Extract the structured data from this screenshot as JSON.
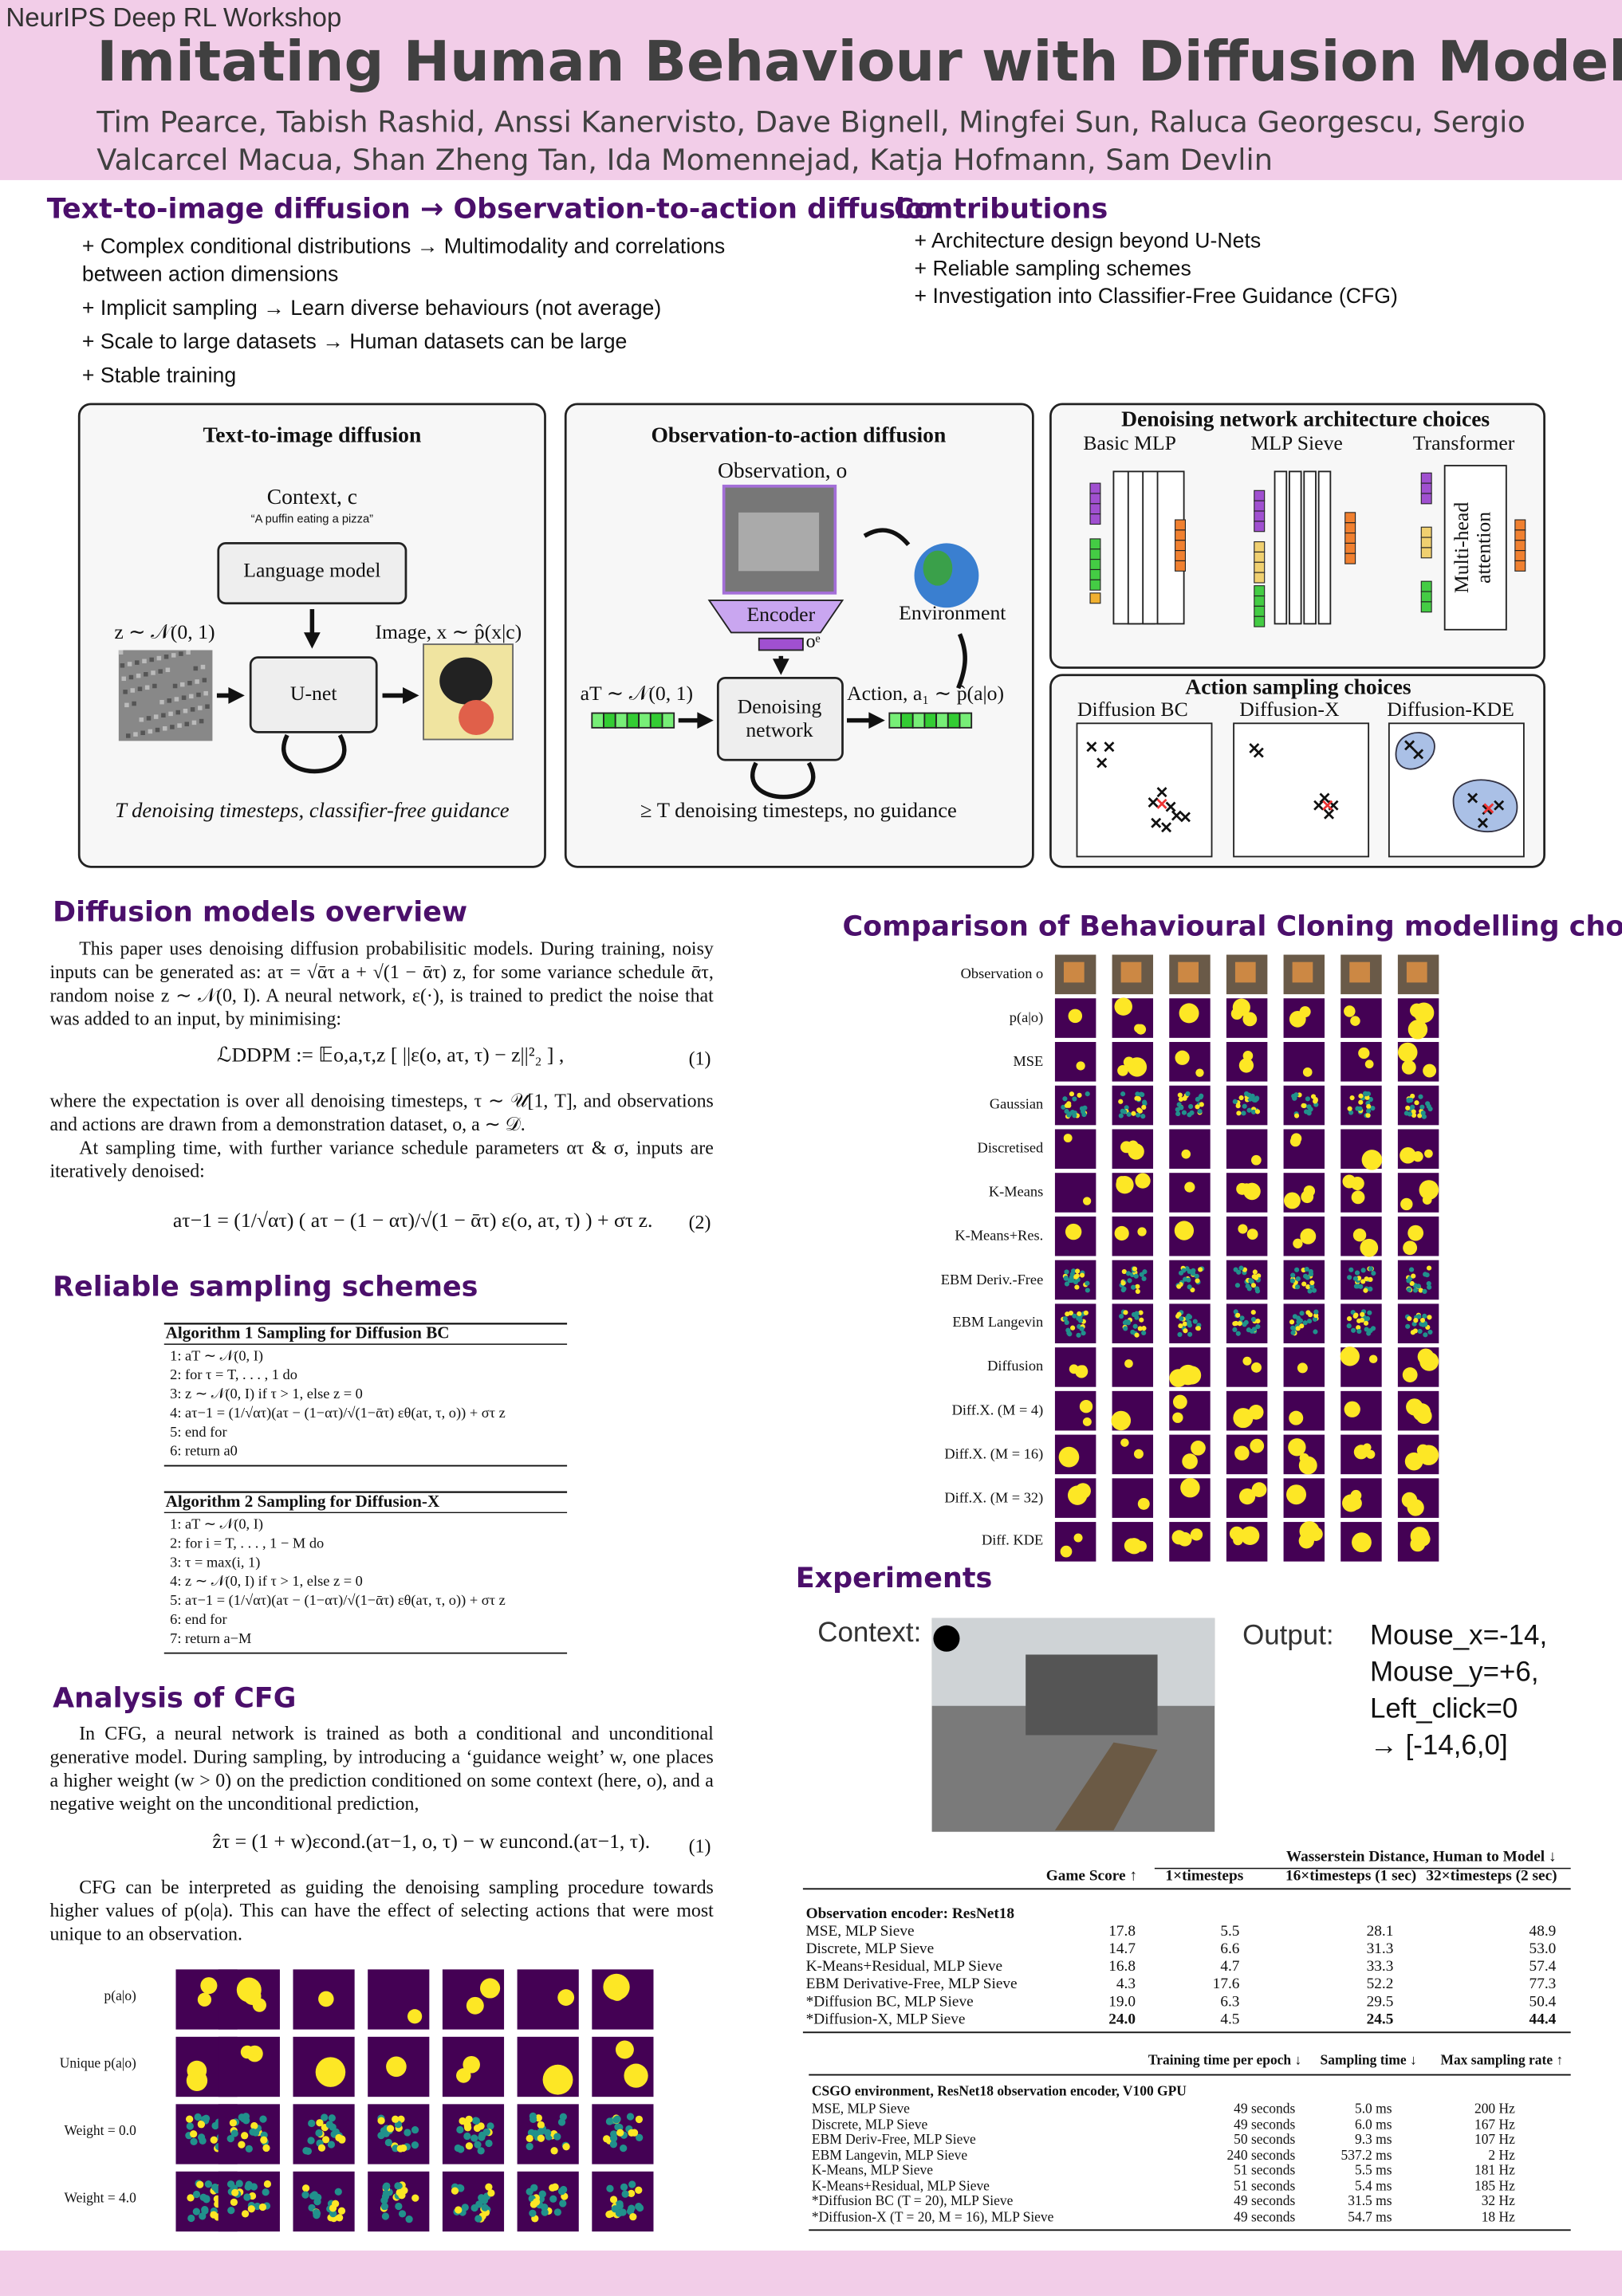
{
  "header": {
    "venue": "NeurIPS Deep RL Workshop",
    "title": "Imitating Human Behaviour with Diffusion Models",
    "authors": "Tim Pearce, Tabish Rashid, Anssi Kanervisto, Dave Bignell, Mingfei Sun, Raluca Georgescu, Sergio Valcarcel Macua, Shan Zheng Tan, Ida Momennejad, Katja Hofmann, Sam Devlin"
  },
  "intro": {
    "title": "Text-to-image diffusion → Observation-to-action diffusion",
    "bullets": [
      "+ Complex conditional distributions → Multimodality and correlations between action dimensions",
      "+ Implicit sampling → Learn diverse behaviours (not average)",
      "+ Scale to large datasets → Human datasets can be large",
      "+ Stable training"
    ]
  },
  "contributions": {
    "title": "Contributions",
    "bullets": [
      "+ Architecture design beyond U-Nets",
      "+ Reliable sampling schemes",
      "+ Investigation into Classifier-Free Guidance (CFG)"
    ]
  },
  "figure": {
    "panel1": {
      "title": "Text-to-image diffusion",
      "context": "Context, c",
      "prompt": "“A puffin eating a pizza”",
      "language_model": "Language model",
      "noise": "z ∼ 𝒩(0, 1)",
      "image": "Image, x ∼ p̂(x|c)",
      "unet": "U-net",
      "caption": "T denoising timesteps, classifier-free guidance"
    },
    "panel2": {
      "title": "Observation-to-action diffusion",
      "observation": "Observation, o",
      "encoder": "Encoder",
      "embedding": "oᵉ",
      "environment": "Environment",
      "noise": "aT ∼ 𝒩(0, 1)",
      "network": "Denoising network",
      "action": "Action, a₁ ∼ p̂(a|o)",
      "caption": "≥ T denoising timesteps, no guidance"
    },
    "panel3": {
      "title": "Denoising network architecture choices",
      "labels": [
        "Basic MLP",
        "MLP Sieve",
        "Transformer"
      ],
      "attention": "Multi-head attention"
    },
    "panel4": {
      "title": "Action sampling choices",
      "labels": [
        "Diffusion BC",
        "Diffusion-X",
        "Diffusion-KDE"
      ]
    }
  },
  "overview": {
    "title": "Diffusion models overview",
    "p1": "This paper uses denoising diffusion probabilisitic models. During training, noisy inputs can be generated as: aτ = √ᾱτ a + √(1 − ᾱτ) z, for some variance schedule ᾱτ, random noise z ∼ 𝒩(0, I). A neural network, ε(·), is trained to predict the noise that was added to an input, by minimising:",
    "eq1": {
      "text": "ℒDDPM := 𝔼o,a,τ,z [ ||ε(o, aτ, τ) − z||²₂ ] ,",
      "number": "(1)"
    },
    "p2": "where the expectation is over all denoising timesteps, τ ∼ 𝒰[1, T], and observations and actions are drawn from a demonstration dataset, o, a ∼ 𝒟.",
    "p3": "At sampling time, with further variance schedule parameters ατ & σ, inputs are iteratively denoised:",
    "eq2": {
      "text": "aτ−1 = (1/√ατ) ( aτ − (1 − ατ)/√(1 − ᾱτ) ε(o, aτ, τ) ) + στ z.",
      "number": "(2)"
    }
  },
  "sampling": {
    "title": "Reliable sampling schemes",
    "algorithms": [
      {
        "caption": "Algorithm 1 Sampling for Diffusion BC",
        "lines": [
          "1: aT ∼ 𝒩(0, I)",
          "2: for τ = T, . . . , 1 do",
          "3:    z ∼ 𝒩(0, I) if τ > 1, else z = 0",
          "4:    aτ−1 = (1/√ατ)(aτ − (1−ατ)/√(1−ᾱτ) εθ(aτ, τ, o)) + στ z",
          "5: end for",
          "6: return a0"
        ]
      },
      {
        "caption": "Algorithm 2 Sampling for Diffusion-X",
        "lines": [
          "1: aT ∼ 𝒩(0, I)",
          "2: for i = T, . . . , 1 − M do",
          "3:    τ = max(i, 1)",
          "4:    z ∼ 𝒩(0, I) if τ > 1, else z = 0",
          "5:    aτ−1 = (1/√ατ)(aτ − (1−ατ)/√(1−ᾱτ) εθ(aτ, τ, o)) + στ z",
          "6: end for",
          "7: return a−M"
        ]
      }
    ]
  },
  "cfg": {
    "title": "Analysis of CFG",
    "p1": "In CFG, a neural network is trained as both a conditional and unconditional generative model. During sampling, by introducing a ‘guidance weight’ w, one places a higher weight (w > 0) on the prediction conditioned on some context (here, o), and a negative weight on the unconditional prediction,",
    "eq": {
      "text": "ẑτ = (1 + w)εcond.(aτ−1, o, τ) − w εuncond.(aτ−1, τ).",
      "number": "(1)"
    },
    "p2": "CFG can be interpreted as guiding the denoising sampling procedure towards higher values of p(o|a). This can have the effect of selecting actions that were most unique to an observation.",
    "row_labels": [
      "p(a|o)",
      "Unique p(a|o)",
      "Weight = 0.0",
      "Weight = 4.0"
    ]
  },
  "comparison": {
    "title": "Comparison of Behavioural Cloning modelling choices",
    "row_labels": [
      "Observation o",
      "p(a|o)",
      "MSE",
      "Gaussian",
      "Discretised",
      "K-Means",
      "K-Means+Res.",
      "EBM Deriv.-Free",
      "EBM Langevin",
      "Diffusion",
      "Diff.X. (M = 4)",
      "Diff.X. (M = 16)",
      "Diff.X. (M = 32)",
      "Diff. KDE"
    ]
  },
  "experiments": {
    "title": "Experiments",
    "context_label": "Context:",
    "output_label": "Output:",
    "output_lines": [
      "Mouse_x=-14,",
      "Mouse_y=+6,",
      "Left_click=0",
      "→ [-14,6,0]"
    ]
  },
  "table1": {
    "group_header": "Wasserstein Distance, Human to Model ↓",
    "columns": [
      "Game Score ↑",
      "1×timesteps",
      "16×timesteps (1 sec)",
      "32×timesteps (2 sec)"
    ],
    "section": "Observation encoder: ResNet18",
    "rows": [
      [
        "MSE, MLP Sieve",
        "17.8",
        "5.5",
        "28.1",
        "48.9"
      ],
      [
        "Discrete, MLP Sieve",
        "14.7",
        "6.6",
        "31.3",
        "53.0"
      ],
      [
        "K-Means+Residual, MLP Sieve",
        "16.8",
        "4.7",
        "33.3",
        "57.4"
      ],
      [
        "EBM Derivative-Free, MLP Sieve",
        "4.3",
        "17.6",
        "52.2",
        "77.3"
      ],
      [
        "*Diffusion BC, MLP Sieve",
        "19.0",
        "6.3",
        "29.5",
        "50.4"
      ],
      [
        "*Diffusion-X, MLP Sieve",
        "24.0",
        "4.5",
        "24.5",
        "44.4"
      ]
    ]
  },
  "table2": {
    "columns": [
      "Training time per epoch ↓",
      "Sampling time ↓",
      "Max sampling rate ↑"
    ],
    "section": "CSGO environment, ResNet18 observation encoder, V100 GPU",
    "rows": [
      [
        "MSE, MLP Sieve",
        "49 seconds",
        "5.0 ms",
        "200 Hz"
      ],
      [
        "Discrete, MLP Sieve",
        "49 seconds",
        "6.0 ms",
        "167 Hz"
      ],
      [
        "EBM Deriv-Free, MLP Sieve",
        "50 seconds",
        "9.3 ms",
        "107 Hz"
      ],
      [
        "EBM Langevin, MLP Sieve",
        "240 seconds",
        "537.2 ms",
        "2 Hz"
      ],
      [
        "K-Means, MLP Sieve",
        "51 seconds",
        "5.5 ms",
        "181 Hz"
      ],
      [
        "K-Means+Residual, MLP Sieve",
        "51 seconds",
        "5.4 ms",
        "185 Hz"
      ],
      [
        "*Diffusion BC (T = 20), MLP Sieve",
        "49 seconds",
        "31.5 ms",
        "32 Hz"
      ],
      [
        "*Diffusion-X (T = 20, M = 16), MLP Sieve",
        "49 seconds",
        "54.7 ms",
        "18 Hz"
      ]
    ]
  }
}
